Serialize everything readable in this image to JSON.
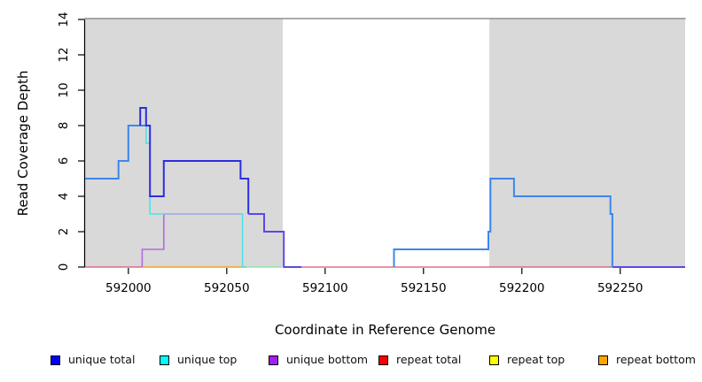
{
  "chart_data": {
    "type": "line",
    "subtype": "step-coverage",
    "title": "",
    "xlabel": "Coordinate in Reference Genome",
    "ylabel": "Read Coverage Depth",
    "xlim": [
      591978,
      592283
    ],
    "ylim": [
      0,
      14
    ],
    "x_ticks": [
      592000,
      592050,
      592100,
      592150,
      592200,
      592250
    ],
    "y_ticks": [
      0,
      2,
      4,
      6,
      8,
      10,
      12,
      14
    ],
    "grid": false,
    "legend_position": "bottom",
    "colors": {
      "shaded_region": "#d9d9d9",
      "top_border": "#8f8f8f",
      "axis": "#000000",
      "unique_total_light": "#3b87ee",
      "unique_total_dark": "#2d2de0",
      "unique_total_bottom_overlap": "#5a49e6",
      "unique_top": "#4de3ea",
      "unique_top_bottom_overlap": "#9fa6e6",
      "unique_bottom": "#b36ae2",
      "repeat_total": "#e0506e",
      "repeat_bottom": "#ff9d1e",
      "top_overlap_green": "#8be8ad"
    },
    "shaded_regions": [
      {
        "name": "shaded-region-left",
        "x0": 591978,
        "x1": 592078.5,
        "color": "#d9d9d9"
      },
      {
        "name": "shaded-region-right",
        "x0": 592183.5,
        "x1": 592283,
        "color": "#d9d9d9"
      }
    ],
    "series": [
      {
        "name": "repeat-total-left",
        "color": "#e0506e",
        "width": 1.3,
        "points": [
          [
            591978,
            0
          ],
          [
            592007,
            0
          ]
        ]
      },
      {
        "name": "repeat-total-mid",
        "color": "#e0506e",
        "width": 1.3,
        "points": [
          [
            592088,
            0
          ],
          [
            592246,
            0
          ]
        ]
      },
      {
        "name": "repeat-bottom",
        "color": "#ff9d1e",
        "width": 1.6,
        "points": [
          [
            592007,
            0
          ],
          [
            592060,
            0
          ]
        ]
      },
      {
        "name": "unique-top-over-repeat-top",
        "color": "#8be8ad",
        "width": 1.6,
        "points": [
          [
            592060,
            0
          ],
          [
            592078,
            0
          ]
        ]
      },
      {
        "name": "unique-bottom",
        "color": "#b36ae2",
        "width": 1.6,
        "points": [
          [
            592007,
            0
          ],
          [
            592007,
            1
          ],
          [
            592018,
            1
          ],
          [
            592018,
            3
          ]
        ]
      },
      {
        "name": "unique-top-bottom-overlap",
        "color": "#9fa6e6",
        "width": 1.6,
        "points": [
          [
            592018,
            3
          ],
          [
            592057,
            3
          ]
        ]
      },
      {
        "name": "unique-total-left",
        "color": "#3b87ee",
        "width": 2,
        "points": [
          [
            591978,
            5
          ],
          [
            591995,
            5
          ],
          [
            591995,
            6
          ],
          [
            592000,
            6
          ],
          [
            592000,
            8
          ],
          [
            592009,
            8
          ]
        ]
      },
      {
        "name": "unique-top",
        "color": "#4de3ea",
        "width": 1.6,
        "points": [
          [
            592009,
            8
          ],
          [
            592009,
            7
          ],
          [
            592011,
            7
          ],
          [
            592011,
            3
          ],
          [
            592018,
            3
          ]
        ]
      },
      {
        "name": "unique-top-drop",
        "color": "#4de3ea",
        "width": 1.6,
        "points": [
          [
            592057,
            3
          ],
          [
            592058,
            3
          ],
          [
            592058,
            0
          ],
          [
            592060,
            0
          ]
        ]
      },
      {
        "name": "unique-total-mid",
        "color": "#2d2de0",
        "width": 2,
        "points": [
          [
            592006,
            8
          ],
          [
            592006,
            9
          ],
          [
            592009,
            9
          ],
          [
            592009,
            8
          ],
          [
            592011,
            8
          ],
          [
            592011,
            4
          ],
          [
            592018,
            4
          ],
          [
            592018,
            6
          ],
          [
            592057,
            6
          ],
          [
            592057,
            5
          ],
          [
            592061,
            5
          ],
          [
            592061,
            3
          ]
        ]
      },
      {
        "name": "unique-total-bottom-overlap",
        "color": "#5a49e6",
        "width": 2,
        "points": [
          [
            592061,
            3
          ],
          [
            592069,
            3
          ],
          [
            592069,
            2
          ],
          [
            592079,
            2
          ],
          [
            592079,
            0
          ],
          [
            592088,
            0
          ]
        ]
      },
      {
        "name": "unique-total-right-zero",
        "color": "#5a49e6",
        "width": 2,
        "points": [
          [
            592246,
            0
          ],
          [
            592283,
            0
          ]
        ]
      },
      {
        "name": "unique-total-right",
        "color": "#3b87ee",
        "width": 2,
        "points": [
          [
            592135,
            0
          ],
          [
            592135,
            1
          ],
          [
            592183,
            1
          ],
          [
            592183,
            2
          ],
          [
            592184,
            2
          ],
          [
            592184,
            5
          ],
          [
            592196,
            5
          ],
          [
            592196,
            4
          ],
          [
            592245,
            4
          ],
          [
            592245,
            3
          ],
          [
            592246,
            3
          ],
          [
            592246,
            0
          ]
        ]
      }
    ],
    "legend": [
      {
        "label": "unique total",
        "color": "#0000ff"
      },
      {
        "label": "unique top",
        "color": "#00ffff"
      },
      {
        "label": "unique bottom",
        "color": "#a020f0"
      },
      {
        "label": "repeat total",
        "color": "#ff0000"
      },
      {
        "label": "repeat top",
        "color": "#ffff00"
      },
      {
        "label": "repeat bottom",
        "color": "#ffa500"
      }
    ]
  }
}
